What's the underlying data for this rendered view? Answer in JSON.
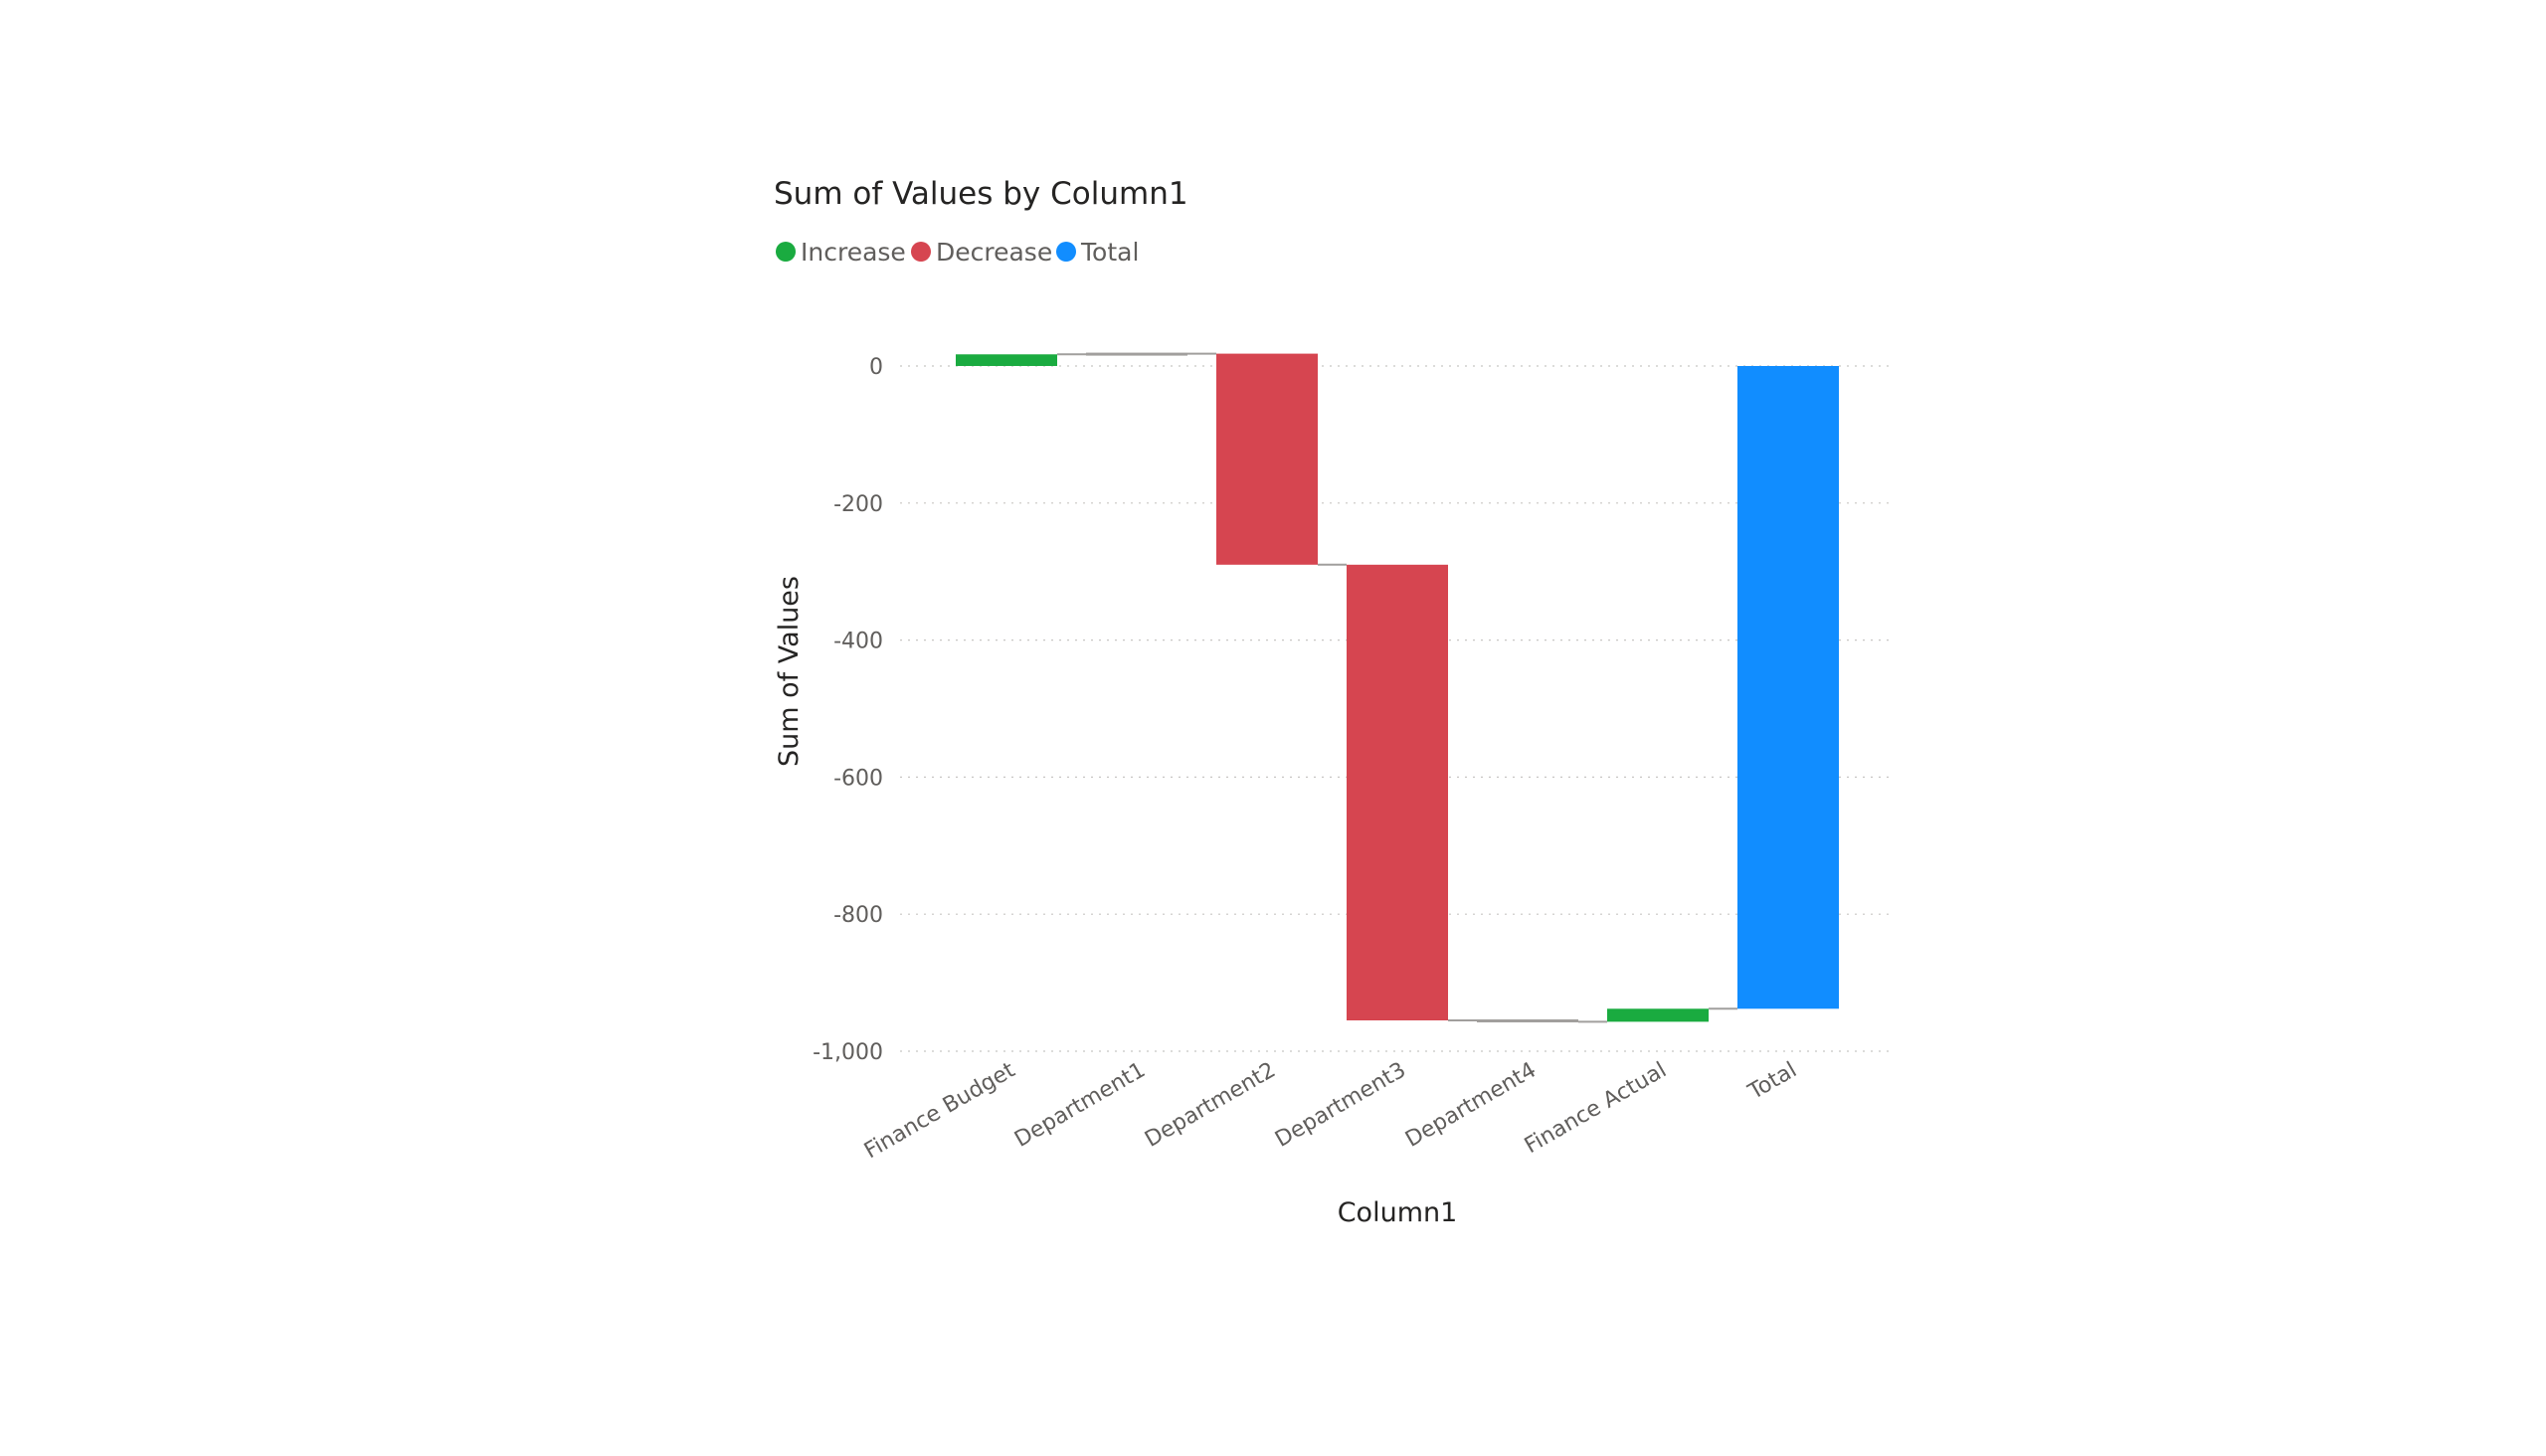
{
  "chart_data": {
    "type": "waterfall",
    "title": "Sum of Values by Column1",
    "xlabel": "Column1",
    "ylabel": "Sum of Values",
    "ylim": [
      -1000,
      20
    ],
    "yticks": [
      {
        "value": 0,
        "label": "0"
      },
      {
        "value": -200,
        "label": "-200"
      },
      {
        "value": -400,
        "label": "-400"
      },
      {
        "value": -600,
        "label": "-600"
      },
      {
        "value": -800,
        "label": "-800"
      },
      {
        "value": -1000,
        "label": "-1,000"
      }
    ],
    "legend": [
      {
        "name": "Increase",
        "color": "#1aab40"
      },
      {
        "name": "Decrease",
        "color": "#d64550"
      },
      {
        "name": "Total",
        "color": "#118dff"
      }
    ],
    "legend_position": "top-left",
    "grid": true,
    "categories": [
      "Finance Budget",
      "Department1",
      "Department2",
      "Department3",
      "Department4",
      "Finance Actual",
      "Total"
    ],
    "steps": [
      {
        "category": "Finance Budget",
        "start": 0,
        "end": 17,
        "kind": "Increase"
      },
      {
        "category": "Department1",
        "start": 17,
        "end": 18,
        "kind": "Increase"
      },
      {
        "category": "Department2",
        "start": 18,
        "end": -290,
        "kind": "Decrease"
      },
      {
        "category": "Department3",
        "start": -290,
        "end": -955,
        "kind": "Decrease"
      },
      {
        "category": "Department4",
        "start": -955,
        "end": -957,
        "kind": "Decrease"
      },
      {
        "category": "Finance Actual",
        "start": -957,
        "end": -938,
        "kind": "Increase"
      },
      {
        "category": "Total",
        "start": 0,
        "end": -938,
        "kind": "Total"
      }
    ]
  }
}
